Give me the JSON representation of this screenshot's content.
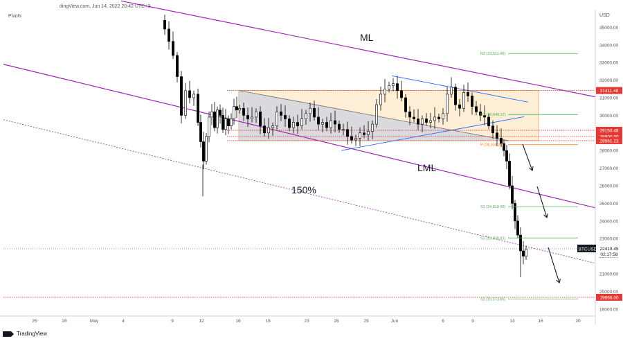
{
  "header": {
    "source": "dingView.com, Jun 14, 2022 20:42 UTC+3",
    "indicator": "Pivots"
  },
  "footer": {
    "brand": "TradingView"
  },
  "chart_data": {
    "type": "candlestick",
    "symbol": "BTCUSD",
    "currency": "USD",
    "last_price": "22419.45",
    "countdown": "02:17:58",
    "ylim": [
      18600,
      36000
    ],
    "y_ticks": [
      19000,
      20000,
      21000,
      22000,
      23000,
      24000,
      25000,
      26000,
      27000,
      28000,
      29000,
      30000,
      31000,
      32000,
      33000,
      34000,
      35000
    ],
    "y_tick_labels": [
      "19000.00",
      "20000.00",
      "21000.00",
      "22000.00",
      "23000.00",
      "24000.00",
      "25000.00",
      "26000.00",
      "27000.00",
      "28000.00",
      "29000.00",
      "30000.00",
      "31000.00",
      "32000.00",
      "33000.00",
      "34000.00",
      "35000.00"
    ],
    "x_labels": [
      "25",
      "28",
      "May",
      "4",
      "9",
      "12",
      "16",
      "19",
      "23",
      "26",
      "29",
      "Jun",
      "6",
      "9",
      "13",
      "16",
      "20"
    ],
    "price_labels": [
      {
        "text": "31411.48",
        "value": 31411.48
      },
      {
        "text": "29150.49",
        "value": 29150.49
      },
      {
        "text": "28800.00",
        "value": 28800
      },
      {
        "text": "28561.23",
        "value": 28561.23
      },
      {
        "text": "19666.00",
        "value": 19666
      }
    ],
    "pivot_levels": [
      {
        "label": "R2 (33,511.45)",
        "value": 33511.45,
        "color": "#4caf50"
      },
      {
        "label": "R1 (30,048.37)",
        "value": 30048.37,
        "color": "#4caf50"
      },
      {
        "label": "P (28,334.26)",
        "value": 28334.26,
        "color": "#f57c00"
      },
      {
        "label": "S1 (24,810.96)",
        "value": 24810.96,
        "color": "#4caf50"
      },
      {
        "label": "S3 (23,036.81)",
        "value": 23036.81,
        "color": "#4caf50"
      },
      {
        "label": "S2 (19,573.85)",
        "value": 19573.85,
        "color": "#4caf50"
      }
    ],
    "annotations": [
      "ML",
      "LML",
      "150%"
    ]
  }
}
